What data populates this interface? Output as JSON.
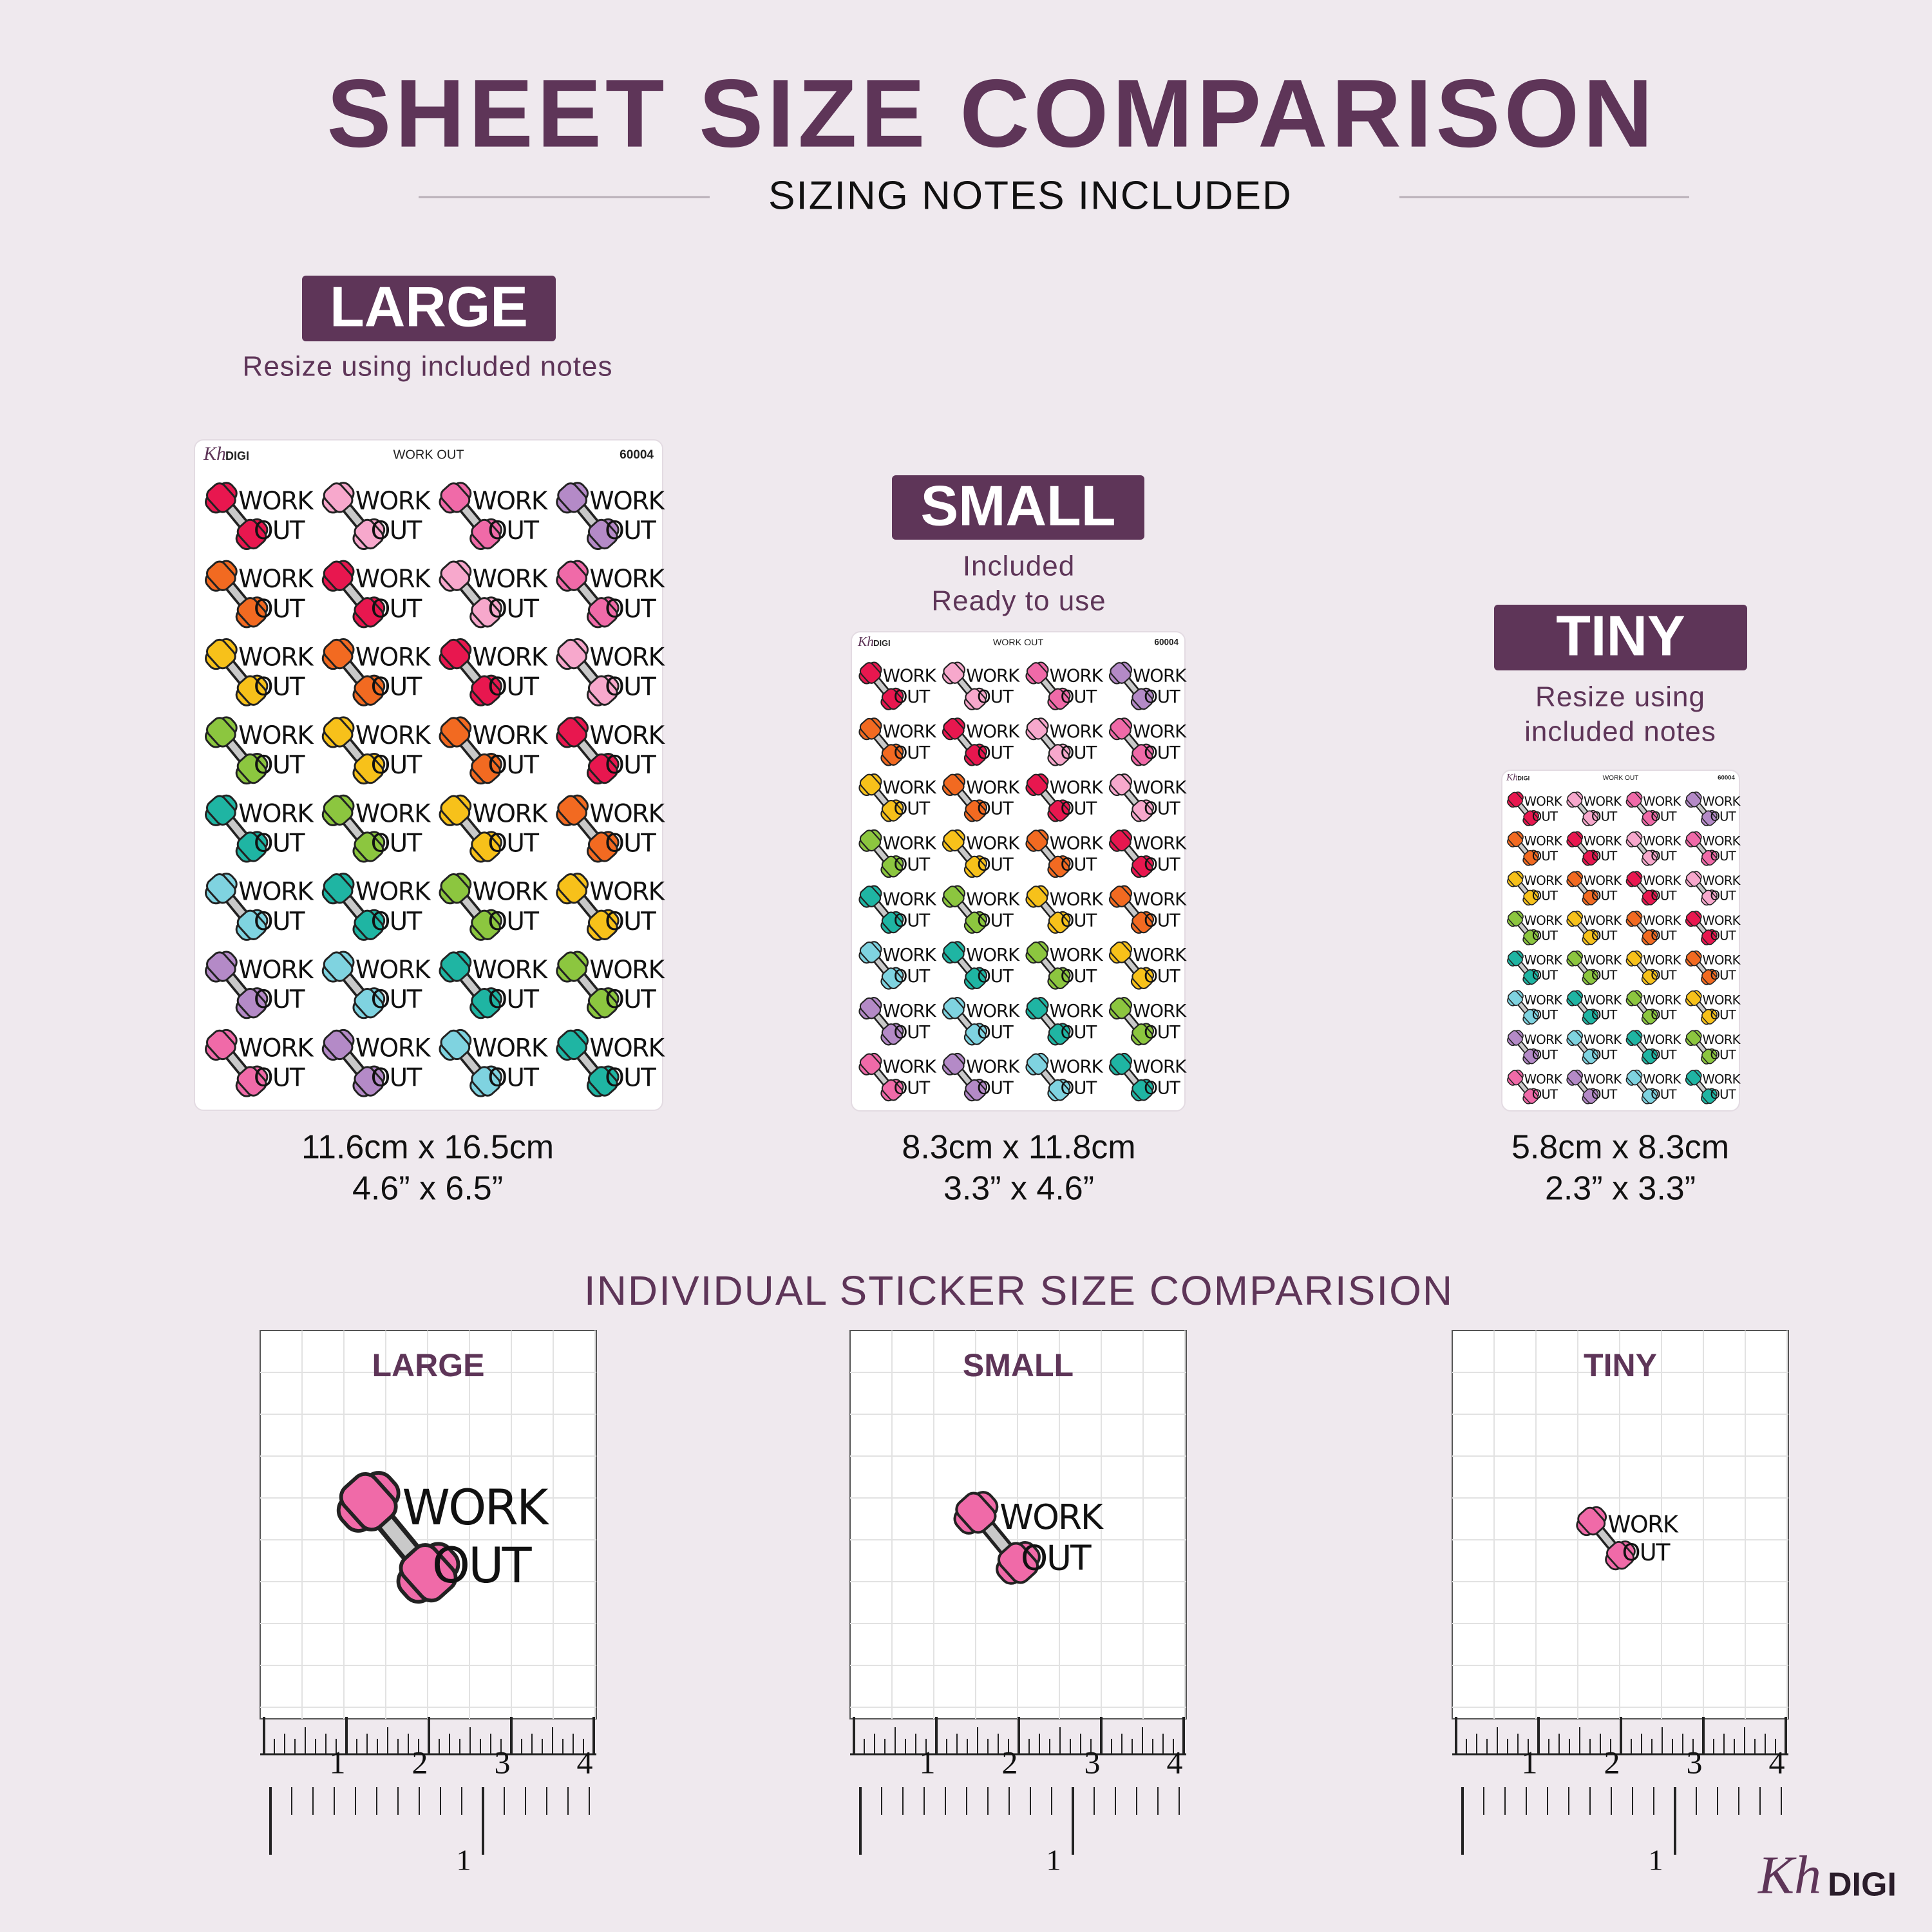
{
  "header": {
    "title": "SHEET SIZE COMPARISON",
    "subtitle": "SIZING NOTES INCLUDED"
  },
  "sheets": [
    {
      "label": "LARGE",
      "notes": [
        "Resize using included notes"
      ],
      "size_cm": "11.6cm x 16.5cm",
      "size_in": "4.6” x 6.5”"
    },
    {
      "label": "SMALL",
      "notes": [
        "Included",
        "Ready to use"
      ],
      "size_cm": "8.3cm x 11.8cm",
      "size_in": "3.3” x 4.6”"
    },
    {
      "label": "TINY",
      "notes": [
        "Resize using",
        "included notes"
      ],
      "size_cm": "5.8cm x 8.3cm",
      "size_in": "2.3” x 3.3”"
    }
  ],
  "sheet_header": {
    "brand_script": "Kh",
    "brand": "DIGI",
    "title": "WORK OUT",
    "code": "60004"
  },
  "sticker": {
    "line1": "WORK",
    "line2": "OUT"
  },
  "comparison": {
    "title": "INDIVIDUAL STICKER SIZE COMPARISION",
    "boxes": [
      "LARGE",
      "SMALL",
      "TINY"
    ],
    "ruler_upper": [
      1,
      2,
      3,
      4
    ],
    "ruler_lower": 1
  },
  "footer": {
    "brand_script": "Kh",
    "brand": "DIGI"
  }
}
